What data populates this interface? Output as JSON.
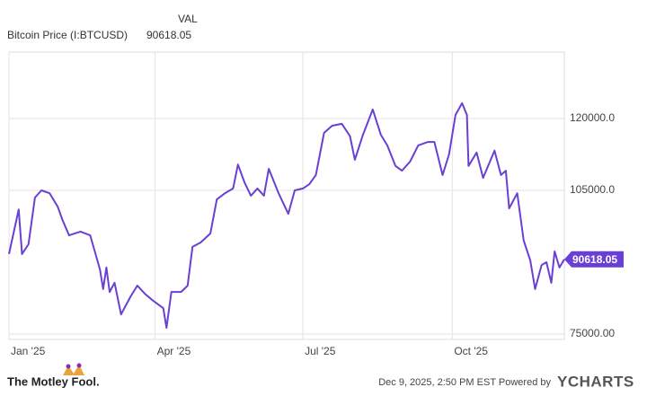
{
  "chart_data": {
    "type": "line",
    "value_header": "VAL",
    "x": [
      "2025-01-01",
      "2025-01-07",
      "2025-01-09",
      "2025-01-13",
      "2025-01-17",
      "2025-01-21",
      "2025-01-26",
      "2025-01-31",
      "2025-02-03",
      "2025-02-07",
      "2025-02-14",
      "2025-02-20",
      "2025-02-26",
      "2025-02-28",
      "2025-03-02",
      "2025-03-04",
      "2025-03-07",
      "2025-03-11",
      "2025-03-17",
      "2025-03-21",
      "2025-03-26",
      "2025-03-31",
      "2025-04-06",
      "2025-04-08",
      "2025-04-11",
      "2025-04-17",
      "2025-04-21",
      "2025-04-24",
      "2025-04-29",
      "2025-05-05",
      "2025-05-09",
      "2025-05-14",
      "2025-05-19",
      "2025-05-22",
      "2025-05-26",
      "2025-05-30",
      "2025-06-03",
      "2025-06-07",
      "2025-06-10",
      "2025-06-16",
      "2025-06-22",
      "2025-06-26",
      "2025-07-01",
      "2025-07-05",
      "2025-07-09",
      "2025-07-14",
      "2025-07-19",
      "2025-07-25",
      "2025-07-30",
      "2025-08-02",
      "2025-08-07",
      "2025-08-13",
      "2025-08-18",
      "2025-08-22",
      "2025-08-27",
      "2025-08-31",
      "2025-09-05",
      "2025-09-10",
      "2025-09-16",
      "2025-09-20",
      "2025-09-25",
      "2025-09-29",
      "2025-10-03",
      "2025-10-07",
      "2025-10-10",
      "2025-10-11",
      "2025-10-16",
      "2025-10-20",
      "2025-10-27",
      "2025-10-31",
      "2025-11-03",
      "2025-11-05",
      "2025-11-10",
      "2025-11-14",
      "2025-11-18",
      "2025-11-21",
      "2025-11-25",
      "2025-11-28",
      "2025-12-01",
      "2025-12-03",
      "2025-12-06",
      "2025-12-09"
    ],
    "series": [
      {
        "name": "Bitcoin Price (I:BTCUSD)",
        "color": "#6a3fd3",
        "values": [
          91700,
          101000,
          91700,
          93750,
          103500,
          105000,
          104400,
          101600,
          98800,
          95600,
          96400,
          95600,
          88500,
          84400,
          88900,
          83800,
          85700,
          79100,
          82900,
          85100,
          83300,
          81900,
          80400,
          76300,
          83800,
          83800,
          85100,
          93200,
          94100,
          96000,
          103100,
          104400,
          105400,
          110400,
          106700,
          103900,
          105400,
          103900,
          109500,
          104400,
          100100,
          105000,
          105400,
          106300,
          108200,
          117000,
          118500,
          118900,
          116300,
          111400,
          116600,
          121900,
          116600,
          114400,
          110100,
          109100,
          111000,
          114400,
          115100,
          115100,
          108200,
          112500,
          120750,
          123200,
          120750,
          110100,
          112900,
          107600,
          113300,
          108200,
          109100,
          101250,
          104400,
          94500,
          90400,
          84400,
          89400,
          90000,
          85700,
          92250,
          88900,
          90618.05
        ]
      }
    ],
    "xlim": [
      "2025-01-01",
      "2025-12-09"
    ],
    "xticks": [
      {
        "value": "2025-01-01",
        "label": "Jan '25"
      },
      {
        "value": "2025-04-01",
        "label": "Apr '25"
      },
      {
        "value": "2025-07-01",
        "label": "Jul '25"
      },
      {
        "value": "2025-10-01",
        "label": "Oct '25"
      }
    ],
    "ylim": [
      73875,
      133875
    ],
    "yticks": [
      {
        "value": 75000,
        "label": "75000.00"
      },
      {
        "value": 105000,
        "label": "105000.0"
      },
      {
        "value": 120000,
        "label": "120000.0"
      }
    ],
    "grid": true,
    "timestamp": "Dec 9, 2025, 2:50 PM EST Powered by",
    "brand": "YCHARTS",
    "publisher": "The Motley Fool."
  }
}
